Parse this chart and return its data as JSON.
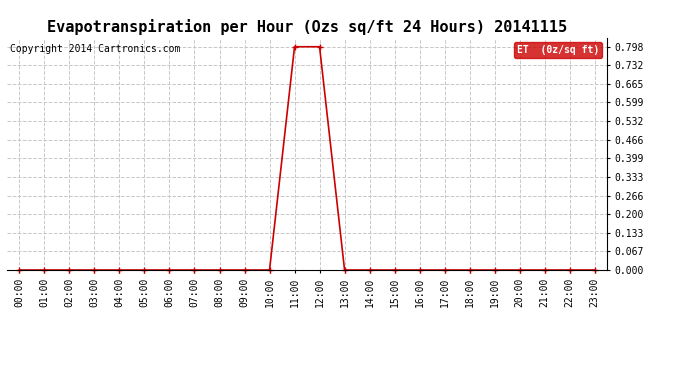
{
  "title": "Evapotranspiration per Hour (Ozs sq/ft 24 Hours) 20141115",
  "copyright": "Copyright 2014 Cartronics.com",
  "legend_label": "ET  (0z/sq ft)",
  "background_color": "#ffffff",
  "plot_bg_color": "#ffffff",
  "line_color": "#cc0000",
  "legend_bg": "#cc0000",
  "legend_text_color": "#ffffff",
  "yticks": [
    0.0,
    0.067,
    0.133,
    0.2,
    0.266,
    0.333,
    0.399,
    0.466,
    0.532,
    0.599,
    0.665,
    0.732,
    0.798
  ],
  "ylim": [
    0.0,
    0.831
  ],
  "hours": [
    0,
    1,
    2,
    3,
    4,
    5,
    6,
    7,
    8,
    9,
    10,
    11,
    12,
    13,
    14,
    15,
    16,
    17,
    18,
    19,
    20,
    21,
    22,
    23
  ],
  "et_values": [
    0.0,
    0.0,
    0.0,
    0.0,
    0.0,
    0.0,
    0.0,
    0.0,
    0.0,
    0.0,
    0.0,
    0.798,
    0.798,
    0.0,
    0.0,
    0.0,
    0.0,
    0.0,
    0.0,
    0.0,
    0.0,
    0.0,
    0.0,
    0.0
  ],
  "marker": "+",
  "marker_size": 5,
  "line_width": 1.2,
  "title_fontsize": 11,
  "tick_fontsize": 7,
  "copyright_fontsize": 7,
  "grid_color": "#c8c8c8",
  "grid_style": "--"
}
